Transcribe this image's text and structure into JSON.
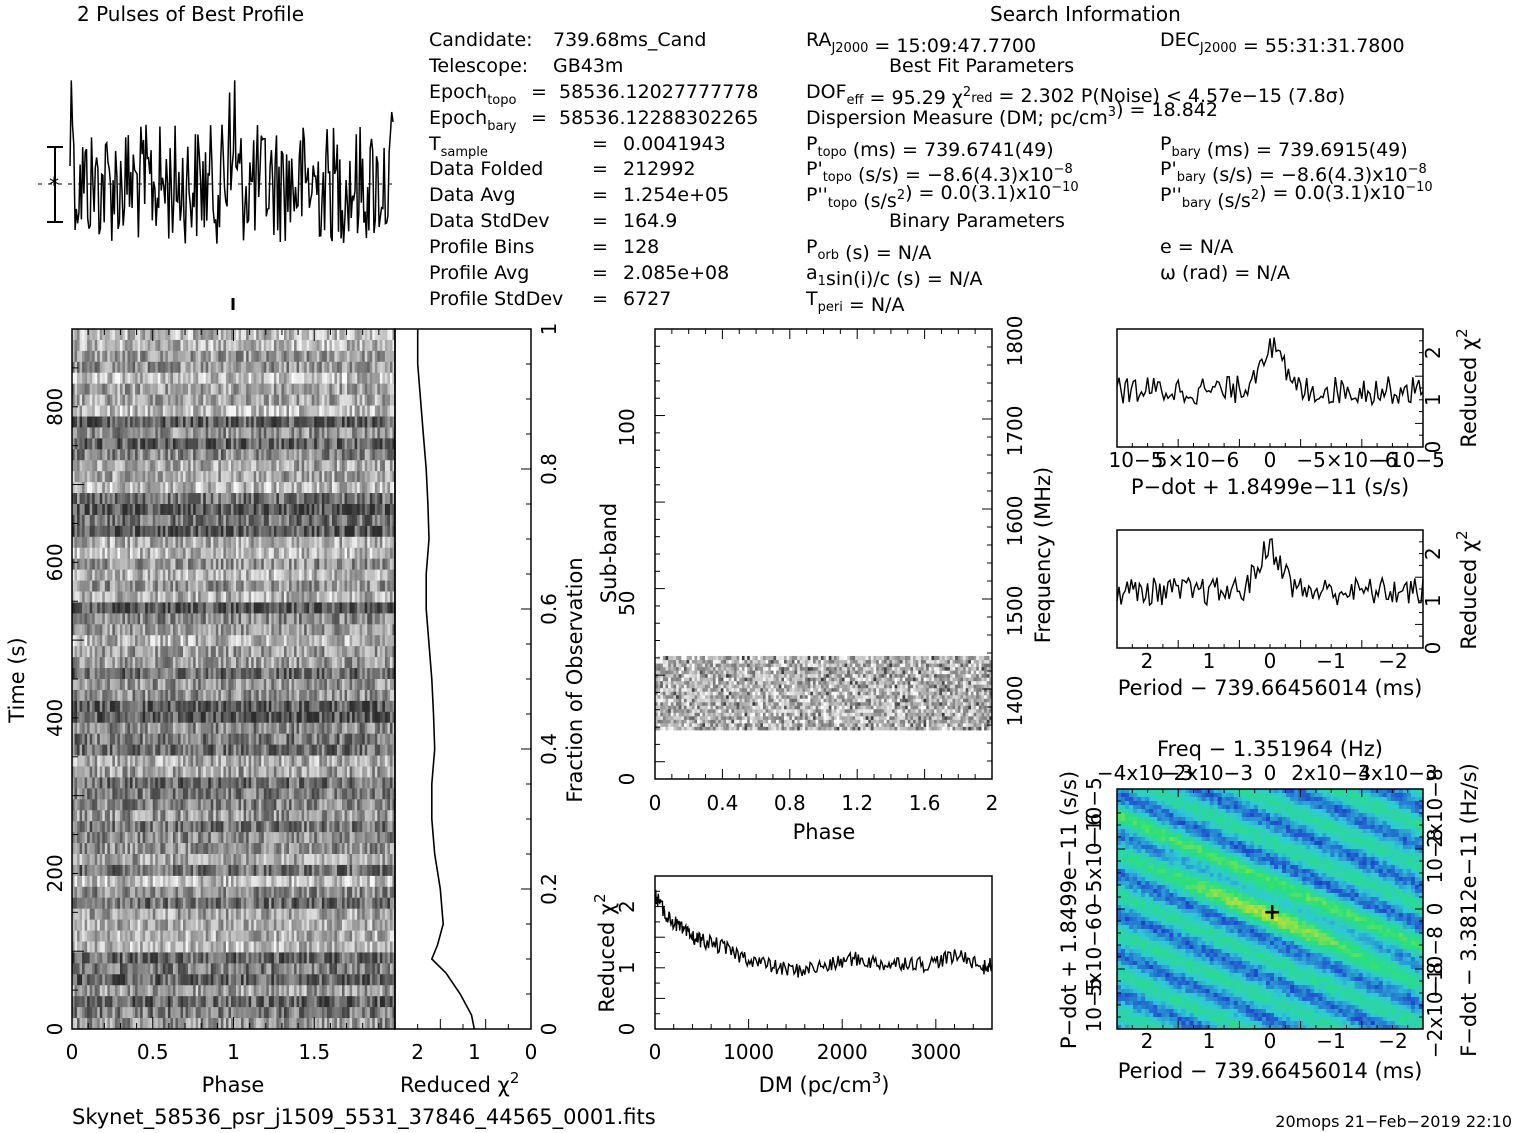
{
  "header": {
    "profile_title": "2 Pulses of Best Profile",
    "search_title": "Search Information",
    "best_fit_title": "Best Fit Parameters",
    "binary_title": "Binary Parameters"
  },
  "info_left": [
    {
      "label": "Candidate:",
      "sub": "",
      "value": "739.68ms_Cand",
      "sep": ""
    },
    {
      "label": "Telescope:",
      "sub": "",
      "value": "GB43m",
      "sep": ""
    },
    {
      "label": "Epoch",
      "sub": "topo",
      "value": "58536.12027777778",
      "sep": "="
    },
    {
      "label": "Epoch",
      "sub": "bary",
      "value": "58536.12288302265",
      "sep": "="
    },
    {
      "label": "T",
      "sub": "sample",
      "value": "0.0041943",
      "sep": "="
    },
    {
      "label": "Data Folded",
      "sub": "",
      "value": "212992",
      "sep": "="
    },
    {
      "label": "Data Avg",
      "sub": "",
      "value": "1.254e+05",
      "sep": "="
    },
    {
      "label": "Data StdDev",
      "sub": "",
      "value": "164.9",
      "sep": "="
    },
    {
      "label": "Profile Bins",
      "sub": "",
      "value": "128",
      "sep": "="
    },
    {
      "label": "Profile Avg",
      "sub": "",
      "value": "2.085e+08",
      "sep": "="
    },
    {
      "label": "Profile StdDev",
      "sub": "",
      "value": "6727",
      "sep": "="
    }
  ],
  "info_right": {
    "ra": "RAJ2000 = 15:09:47.7700",
    "dec": "DECJ2000 = 55:31:31.7800",
    "fit_line": "DOFeff = 95.29  χ2red = 2.302  P(Noise) < 4.57e−15  (7.8σ)",
    "dm_line": "Dispersion Measure (DM; pc/cm3) = 18.842",
    "ptopo": "Ptopo (ms) =  739.6741(49)",
    "pbary": "Pbary (ms) =  739.6915(49)",
    "pdtopo": "P'topo (s/s) = −8.6(4.3)x10−8",
    "pdbary": "P'bary (s/s) = −8.6(4.3)x10−8",
    "pddtopo": "P''topo (s/s2) = 0.0(3.1)x10−10",
    "pddbary": "P''bary (s/s2) = 0.0(3.1)x10−10",
    "porb": "Porb (s) = N/A",
    "asini": "a1sin(i)/c (s) = N/A",
    "tperi": "Tperi = N/A",
    "ecc": "e = N/A",
    "omega": "ω (rad) = N/A"
  },
  "footer": {
    "filename": "Skynet_58536_psr_j1509_5531_37846_44565_0001.fits",
    "stamp": "20mops 21−Feb−2019 22:10"
  },
  "colors": {
    "ink": "#000000",
    "pp_low": "#1a28c8",
    "pp_mid": "#2fc8d8",
    "pp_high": "#29e07a",
    "pp_peak": "#e6e020"
  },
  "chart_data": [
    {
      "name": "profile",
      "type": "line",
      "title": "2 Pulses of Best Profile",
      "x": "phase 0-2, 256 bins (two pulses)",
      "xlim": [
        0,
        2
      ],
      "peak_phase": 1.0,
      "values_desc": "noise-like profile with narrow spikes near phase 1.0 and 2.0"
    },
    {
      "name": "time_phase",
      "type": "heatmap",
      "xlabel": "Phase",
      "ylabel": "Time (s)",
      "xlim": [
        0,
        2
      ],
      "ylim": [
        0,
        900
      ],
      "xticks": [
        "0",
        "0.5",
        "1",
        "1.5"
      ],
      "yticks": [
        "0",
        "200",
        "400",
        "600",
        "800"
      ]
    },
    {
      "name": "time_chi2",
      "type": "line",
      "xlabel": "Reduced χ2",
      "ylabel": "Fraction of Observation",
      "xlim": [
        2.4,
        0
      ],
      "ylim": [
        0,
        1
      ],
      "xticks": [
        "2",
        "1",
        "0"
      ],
      "yticks": [
        "0",
        "0.2",
        "0.4",
        "0.6",
        "0.8",
        "1"
      ],
      "fraction": [
        0.0,
        0.02,
        0.05,
        0.08,
        0.1,
        0.12,
        0.15,
        0.2,
        0.25,
        0.3,
        0.35,
        0.4,
        0.45,
        0.5,
        0.55,
        0.6,
        0.65,
        0.7,
        0.75,
        0.8,
        0.85,
        0.9,
        0.95,
        1.0
      ],
      "chi2": [
        1.0,
        1.05,
        1.25,
        1.5,
        1.75,
        1.65,
        1.55,
        1.6,
        1.7,
        1.75,
        1.75,
        1.7,
        1.72,
        1.75,
        1.8,
        1.85,
        1.85,
        1.8,
        1.82,
        1.85,
        1.9,
        1.95,
        2.0,
        2.0
      ]
    },
    {
      "name": "subband_phase",
      "type": "heatmap",
      "xlabel": "Phase",
      "ylabel": "Sub-band",
      "ylabel2": "Frequency (MHz)",
      "xlim": [
        0,
        2
      ],
      "ylim": [
        0,
        128
      ],
      "freq_lim": [
        1300,
        1800
      ],
      "xticks": [
        "0",
        "0.4",
        "0.8",
        "1.2",
        "1.6",
        "2"
      ],
      "yticks": [
        "0",
        "50",
        "100"
      ],
      "freq_ticks": [
        "1400",
        "1500",
        "1600",
        "1700",
        "1800"
      ],
      "active_subbands": [
        14,
        35
      ]
    },
    {
      "name": "dm_chi2",
      "type": "line",
      "xlabel": "DM (pc/cm3)",
      "ylabel": "Reduced χ2",
      "xlim": [
        0,
        3600
      ],
      "ylim": [
        0,
        2.5
      ],
      "xticks": [
        "0",
        "1000",
        "2000",
        "3000"
      ],
      "yticks": [
        "0",
        "1",
        "2"
      ],
      "x": [
        0,
        100,
        200,
        300,
        400,
        500,
        700,
        900,
        1100,
        1300,
        1500,
        1700,
        1900,
        2100,
        2300,
        2500,
        2700,
        2900,
        3100,
        3300,
        3500,
        3600
      ],
      "y": [
        2.2,
        1.9,
        1.75,
        1.6,
        1.5,
        1.45,
        1.35,
        1.2,
        1.1,
        1.0,
        0.95,
        1.0,
        1.05,
        1.15,
        1.1,
        1.05,
        1.1,
        1.05,
        1.15,
        1.2,
        1.0,
        1.05
      ]
    },
    {
      "name": "pdot_chi2",
      "type": "line",
      "xlabel": "P−dot + 1.8499e−11 (s/s)",
      "ylabel": "Reduced χ2",
      "xlim": [
        1e-05,
        -1e-05
      ],
      "ylim": [
        0,
        2.5
      ],
      "xticks": [
        "10−5",
        "5×10−6",
        "0",
        "−5×10−6",
        "−10−5"
      ],
      "yticks": [
        "0",
        "1",
        "2"
      ],
      "peak": 2.3,
      "baseline": 1.2
    },
    {
      "name": "period_chi2",
      "type": "line",
      "xlabel": "Period − 739.66456014 (ms)",
      "ylabel": "Reduced χ2",
      "xlim": [
        2.5,
        -2.5
      ],
      "ylim": [
        0,
        2.5
      ],
      "xticks": [
        "2",
        "1",
        "0",
        "−1",
        "−2"
      ],
      "yticks": [
        "0",
        "1",
        "2"
      ],
      "peak": 2.3,
      "baseline": 1.2
    },
    {
      "name": "p_pdot_plane",
      "type": "heatmap",
      "title": "Freq − 1.351964 (Hz)",
      "xlabel": "Period − 739.66456014 (ms)",
      "ylabel": "P−dot + 1.8499e−11 (s/s)",
      "ylabel2": "F−dot − 3.3812e−11 (Hz/s)",
      "xlim": [
        2.5,
        -2.5
      ],
      "ylim": [
        1e-05,
        -1e-05
      ],
      "xticks": [
        "2",
        "1",
        "0",
        "−1",
        "−2"
      ],
      "top_ticks": [
        "−4x10−3",
        "−2x10−3",
        "0",
        "2x10−3",
        "4x10−3"
      ],
      "yticks": [
        "10−5",
        "5x10−6",
        "0",
        "−5x10−6",
        "−10−5"
      ],
      "right_ticks": [
        "−2x10−8",
        "−10−8",
        "0",
        "10−8",
        "2x10−8"
      ],
      "best": [
        0,
        0
      ]
    }
  ]
}
